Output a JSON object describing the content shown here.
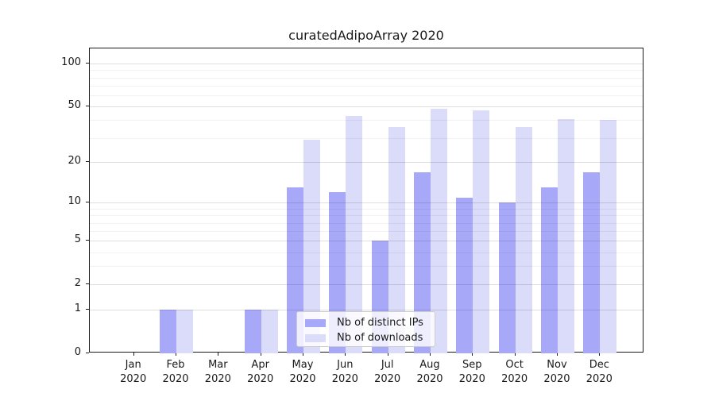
{
  "chart_data": {
    "type": "bar",
    "title": "curatedAdipoArray 2020",
    "categories": [
      "Jan 2020",
      "Feb 2020",
      "Mar 2020",
      "Apr 2020",
      "May 2020",
      "Jun 2020",
      "Jul 2020",
      "Aug 2020",
      "Sep 2020",
      "Oct 2020",
      "Nov 2020",
      "Dec 2020"
    ],
    "x_month_labels": [
      "Jan",
      "Feb",
      "Mar",
      "Apr",
      "May",
      "Jun",
      "Jul",
      "Aug",
      "Sep",
      "Oct",
      "Nov",
      "Dec"
    ],
    "x_year_label": "2020",
    "series": [
      {
        "name": "Nb of distinct IPs",
        "color": "#a8a8f8",
        "values": [
          0,
          1,
          0,
          1,
          13,
          12,
          5,
          17,
          11,
          10,
          13,
          17
        ]
      },
      {
        "name": "Nb of downloads",
        "color": "#dbdbfa",
        "values": [
          0,
          1,
          0,
          1,
          29,
          43,
          36,
          48,
          47,
          36,
          41,
          40
        ]
      }
    ],
    "y_axis": {
      "scale": "log1p",
      "major_ticks": [
        0,
        1,
        2,
        5,
        10,
        20,
        50,
        100
      ],
      "minor_gridlines": [
        3,
        4,
        6,
        7,
        8,
        9,
        30,
        40,
        60,
        70,
        80,
        90
      ],
      "ylim": [
        0,
        127
      ]
    },
    "legend_position": "lower center",
    "grid": true
  },
  "colors": {
    "axis": "#1a1a1a",
    "text": "#1a1a1a",
    "grid_major": "rgba(0,0,0,0.13)",
    "grid_minor": "rgba(0,0,0,0.05)",
    "legend_border": "#cccccc",
    "legend_background": "rgba(255,255,255,0.8)",
    "series_dark": "#a8a8f8",
    "series_light": "#dbdbfa"
  }
}
